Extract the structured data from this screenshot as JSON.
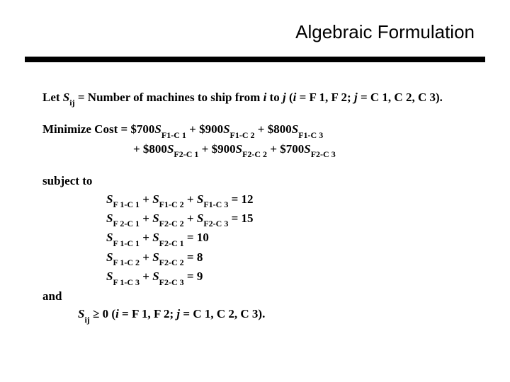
{
  "title": "Algebraic Formulation",
  "let_line": {
    "prefix": "Let ",
    "var": "S",
    "sub": "ij",
    "eq": " = Number of machines to ship from ",
    "i": "i",
    "to": " to ",
    "j": "j",
    "open": " (",
    "i2": "i ",
    "irange": " = F 1, F 2;  ",
    "j2": "j ",
    "jrange": " = C 1, C 2, C 3)."
  },
  "obj": {
    "head": "Minimize Cost = $700",
    "t1s": "S",
    "t1sub": "F1-C 1",
    "p1": " + $900",
    "t2s": "S",
    "t2sub": "F1-C 2",
    "p2": " + $800",
    "t3s": "S",
    "t3sub": "F1-C 3",
    "line2a": "+ $800",
    "t4s": "S",
    "t4sub": "F2-C 1",
    "p3": " + $900",
    "t5s": "S",
    "t5sub": "F2-C 2",
    "p4": " + $700",
    "t6s": "S",
    "t6sub": "F2-C 3"
  },
  "subject_to": "subject to",
  "and": "and",
  "c1": {
    "a": "S",
    "as": "F 1-C 1",
    "p1": " + ",
    "b": "S",
    "bs": "F1-C 2",
    "p2": " + ",
    "c": "S",
    "cs": "F1-C 3",
    "eq": " = 12"
  },
  "c2": {
    "a": "S",
    "as": "F 2-C 1",
    "p1": " + ",
    "b": "S",
    "bs": "F2-C 2",
    "p2": " + ",
    "c": "S",
    "cs": "F2-C 3",
    "eq": " = 15"
  },
  "c3": {
    "a": "S",
    "as": "F 1-C 1",
    "p1": " + ",
    "b": "S",
    "bs": "F2-C 1",
    "eq": " = 10"
  },
  "c4": {
    "a": "S",
    "as": "F 1-C 2",
    "p1": " + ",
    "b": "S",
    "bs": "F2-C 2",
    "eq": " = 8"
  },
  "c5": {
    "a": "S",
    "as": "F 1-C 3",
    "p1": " + ",
    "b": "S",
    "bs": "F2-C 3",
    "eq": " = 9"
  },
  "nn": {
    "s": "S",
    "sub": "ij",
    "geq": " ≥ 0 (",
    "i": "i ",
    "ir": " = F 1, F 2;  ",
    "j": "j ",
    "jr": " = C 1, C 2, C 3)."
  }
}
